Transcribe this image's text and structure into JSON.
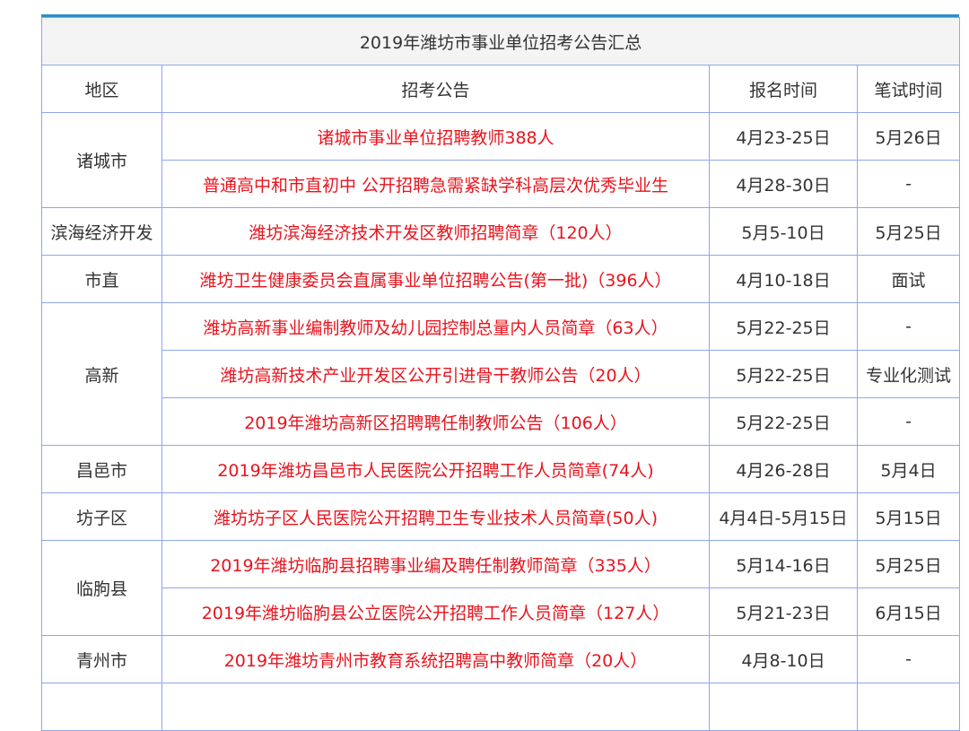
{
  "title": "2019年潍坊市事业单位招考公告汇总",
  "headers": [
    "地区",
    "招考公告",
    "报名时间",
    "笔试时间"
  ],
  "groups": [
    {
      "region": "诸城市",
      "rows": [
        {
          "notice": "诸城市事业单位招聘教师388人",
          "signup": "4月23-25日",
          "exam": "5月26日"
        },
        {
          "notice": "普通高中和市直初中 公开招聘急需紧缺学科高层次优秀毕业生",
          "signup": "4月28-30日",
          "exam": "-"
        }
      ]
    },
    {
      "region": "滨海经济开发",
      "rows": [
        {
          "notice": "潍坊滨海经济技术开发区教师招聘简章（120人）",
          "signup": "5月5-10日",
          "exam": "5月25日"
        }
      ]
    },
    {
      "region": "市直",
      "rows": [
        {
          "notice": "潍坊卫生健康委员会直属事业单位招聘公告(第一批)（396人）",
          "signup": "4月10-18日",
          "exam": "面试"
        }
      ]
    },
    {
      "region": "高新",
      "rows": [
        {
          "notice": "潍坊高新事业编制教师及幼儿园控制总量内人员简章（63人）",
          "signup": "5月22-25日",
          "exam": "-"
        },
        {
          "notice": "潍坊高新技术产业开发区公开引进骨干教师公告（20人）",
          "signup": "5月22-25日",
          "exam": "专业化测试"
        },
        {
          "notice": "2019年潍坊高新区招聘聘任制教师公告（106人）",
          "signup": "5月22-25日",
          "exam": "-"
        }
      ]
    },
    {
      "region": "昌邑市",
      "rows": [
        {
          "notice": "2019年潍坊昌邑市人民医院公开招聘工作人员简章(74人)",
          "signup": "4月26-28日",
          "exam": "5月4日"
        }
      ]
    },
    {
      "region": "坊子区",
      "rows": [
        {
          "notice": "潍坊坊子区人民医院公开招聘卫生专业技术人员简章(50人)",
          "signup": "4月4日-5月15日",
          "exam": "5月15日"
        }
      ]
    },
    {
      "region": "临朐县",
      "rows": [
        {
          "notice": "2019年潍坊临朐县招聘事业编及聘任制教师简章（335人）",
          "signup": "5月14-16日",
          "exam": "5月25日"
        },
        {
          "notice": "2019年潍坊临朐县公立医院公开招聘工作人员简章（127人）",
          "signup": "5月21-23日",
          "exam": "6月15日"
        }
      ]
    },
    {
      "region": "青州市",
      "rows": [
        {
          "notice": "2019年潍坊青州市教育系统招聘高中教师简章（20人）",
          "signup": "4月8-10日",
          "exam": "-"
        }
      ]
    }
  ],
  "colors": {
    "link": "#e8141e",
    "border": "#8ea6ee",
    "top_border": "#2b8ec6",
    "title_bg": "#f4f4f4"
  }
}
